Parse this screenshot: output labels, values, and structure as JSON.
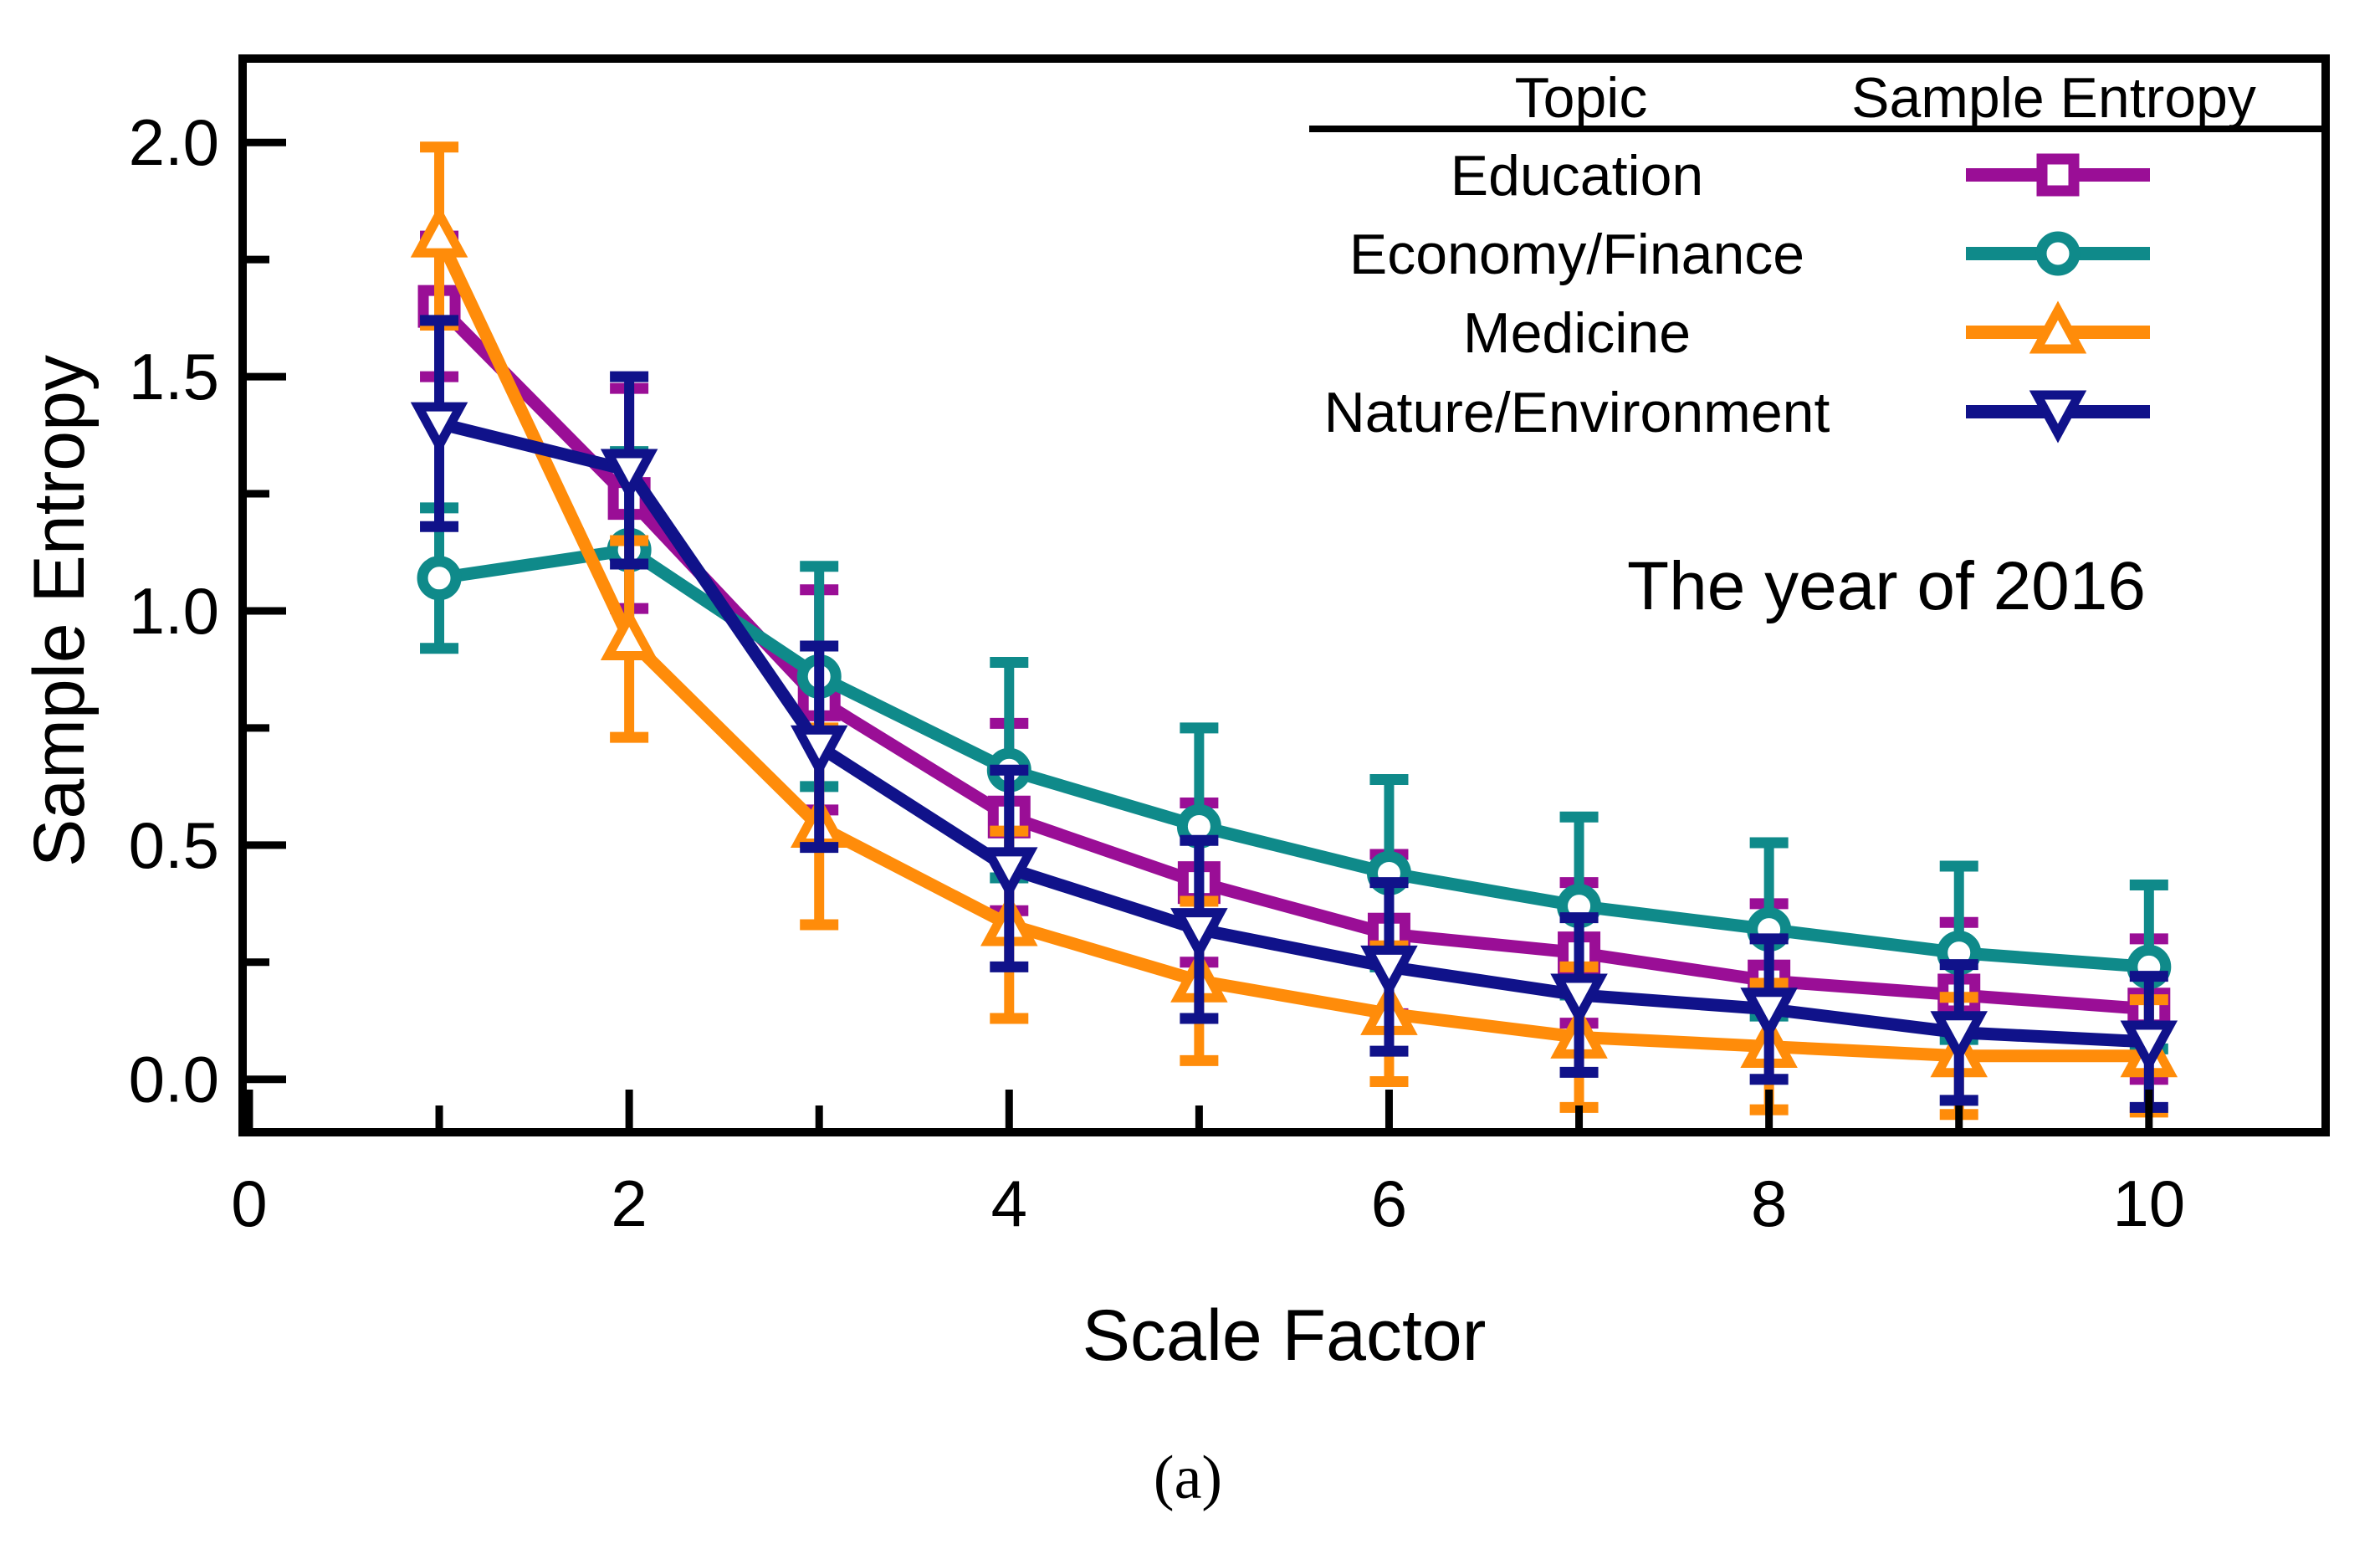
{
  "figure": {
    "annotation": "The year of 2016",
    "caption": "(a)"
  },
  "chart_data": {
    "type": "line",
    "title": "",
    "xlabel": "Scale Factor",
    "ylabel": "Sample Entropy",
    "x": [
      1,
      2,
      3,
      4,
      5,
      6,
      7,
      8,
      9,
      10
    ],
    "xlim": [
      -0.035,
      10.93
    ],
    "ylim": [
      -0.113,
      2.179
    ],
    "grid": false,
    "x_major_ticks": [
      0,
      2,
      4,
      6,
      8,
      10
    ],
    "x_major_tick_labels": [
      "0",
      "2",
      "4",
      "6",
      "8",
      "10"
    ],
    "x_minor_ticks": [
      1,
      3,
      5,
      7,
      9
    ],
    "y_major_ticks": [
      0,
      0.5,
      1,
      1.5,
      2
    ],
    "y_major_tick_labels": [
      "0.0",
      "0.5",
      "1.0",
      "1.5",
      "2.0"
    ],
    "y_minor_ticks": [
      0.25,
      0.75,
      1.25,
      1.75
    ],
    "legend": {
      "position": "top-right",
      "col1_header": "Topic",
      "col2_header": "Sample Entropy"
    },
    "series": [
      {
        "name": "Education",
        "color": "#9A0E96",
        "marker": "square",
        "values": [
          1.65,
          1.24,
          0.81,
          0.56,
          0.42,
          0.31,
          0.27,
          0.21,
          0.18,
          0.15
        ],
        "errors": [
          0.15,
          0.235,
          0.235,
          0.2,
          0.17,
          0.17,
          0.15,
          0.165,
          0.155,
          0.15
        ]
      },
      {
        "name": "Economy/Finance",
        "color": "#0F8A8A",
        "marker": "circle",
        "values": [
          1.07,
          1.13,
          0.86,
          0.66,
          0.54,
          0.44,
          0.37,
          0.32,
          0.27,
          0.24
        ],
        "errors": [
          0.15,
          0.21,
          0.235,
          0.23,
          0.21,
          0.2,
          0.19,
          0.185,
          0.185,
          0.175
        ]
      },
      {
        "name": "Medicine",
        "color": "#FF8C0A",
        "marker": "triangle-up",
        "values": [
          1.8,
          0.94,
          0.54,
          0.33,
          0.21,
          0.14,
          0.09,
          0.07,
          0.05,
          0.05
        ],
        "errors": [
          0.19,
          0.21,
          0.21,
          0.2,
          0.17,
          0.145,
          0.15,
          0.135,
          0.125,
          0.12
        ]
      },
      {
        "name": "Nature/Environment",
        "color": "#10128A",
        "marker": "triangle-down",
        "values": [
          1.4,
          1.3,
          0.71,
          0.45,
          0.32,
          0.24,
          0.18,
          0.15,
          0.1,
          0.08
        ],
        "errors": [
          0.22,
          0.2,
          0.215,
          0.21,
          0.19,
          0.18,
          0.165,
          0.15,
          0.145,
          0.14
        ]
      }
    ]
  }
}
